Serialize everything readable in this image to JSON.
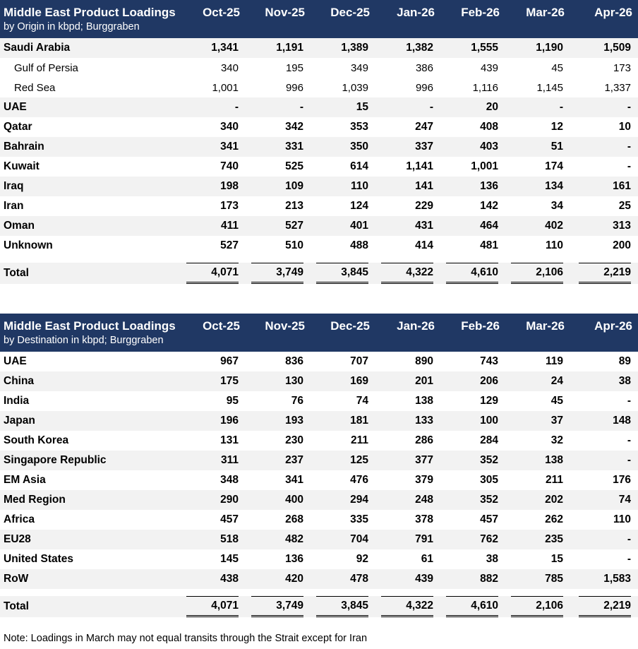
{
  "origin_table": {
    "title": "Middle East Product Loadings",
    "subtitle": "by Origin in kbpd; Burggraben",
    "months": [
      "Oct-25",
      "Nov-25",
      "Dec-25",
      "Jan-26",
      "Feb-26",
      "Mar-26",
      "Apr-26"
    ],
    "rows": [
      {
        "label": "Saudi Arabia",
        "bold": true,
        "shade": true,
        "values": [
          "1,341",
          "1,191",
          "1,389",
          "1,382",
          "1,555",
          "1,190",
          "1,509"
        ]
      },
      {
        "label": "Gulf of Persia",
        "bold": false,
        "child": true,
        "shade": false,
        "values": [
          "340",
          "195",
          "349",
          "386",
          "439",
          "45",
          "173"
        ]
      },
      {
        "label": "Red Sea",
        "bold": false,
        "child": true,
        "shade": false,
        "values": [
          "1,001",
          "996",
          "1,039",
          "996",
          "1,116",
          "1,145",
          "1,337"
        ]
      },
      {
        "label": "UAE",
        "bold": true,
        "shade": true,
        "values": [
          "-",
          "-",
          "15",
          "-",
          "20",
          "-",
          "-"
        ]
      },
      {
        "label": "Qatar",
        "bold": true,
        "shade": false,
        "values": [
          "340",
          "342",
          "353",
          "247",
          "408",
          "12",
          "10"
        ]
      },
      {
        "label": "Bahrain",
        "bold": true,
        "shade": true,
        "values": [
          "341",
          "331",
          "350",
          "337",
          "403",
          "51",
          "-"
        ]
      },
      {
        "label": "Kuwait",
        "bold": true,
        "shade": false,
        "values": [
          "740",
          "525",
          "614",
          "1,141",
          "1,001",
          "174",
          "-"
        ]
      },
      {
        "label": "Iraq",
        "bold": true,
        "shade": true,
        "values": [
          "198",
          "109",
          "110",
          "141",
          "136",
          "134",
          "161"
        ]
      },
      {
        "label": "Iran",
        "bold": true,
        "shade": false,
        "values": [
          "173",
          "213",
          "124",
          "229",
          "142",
          "34",
          "25"
        ]
      },
      {
        "label": "Oman",
        "bold": true,
        "shade": true,
        "values": [
          "411",
          "527",
          "401",
          "431",
          "464",
          "402",
          "313"
        ]
      },
      {
        "label": "Unknown",
        "bold": true,
        "shade": false,
        "values": [
          "527",
          "510",
          "488",
          "414",
          "481",
          "110",
          "200"
        ]
      }
    ],
    "total": {
      "label": "Total",
      "values": [
        "4,071",
        "3,749",
        "3,845",
        "4,322",
        "4,610",
        "2,106",
        "2,219"
      ]
    }
  },
  "destination_table": {
    "title": "Middle East Product Loadings",
    "subtitle": "by Destination in kbpd; Burggraben",
    "months": [
      "Oct-25",
      "Nov-25",
      "Dec-25",
      "Jan-26",
      "Feb-26",
      "Mar-26",
      "Apr-26"
    ],
    "rows": [
      {
        "label": "UAE",
        "bold": true,
        "shade": false,
        "values": [
          "967",
          "836",
          "707",
          "890",
          "743",
          "119",
          "89"
        ]
      },
      {
        "label": "China",
        "bold": true,
        "shade": true,
        "values": [
          "175",
          "130",
          "169",
          "201",
          "206",
          "24",
          "38"
        ]
      },
      {
        "label": "India",
        "bold": true,
        "shade": false,
        "values": [
          "95",
          "76",
          "74",
          "138",
          "129",
          "45",
          "-"
        ]
      },
      {
        "label": "Japan",
        "bold": true,
        "shade": true,
        "values": [
          "196",
          "193",
          "181",
          "133",
          "100",
          "37",
          "148"
        ]
      },
      {
        "label": "South Korea",
        "bold": true,
        "shade": false,
        "values": [
          "131",
          "230",
          "211",
          "286",
          "284",
          "32",
          "-"
        ]
      },
      {
        "label": "Singapore Republic",
        "bold": true,
        "shade": true,
        "values": [
          "311",
          "237",
          "125",
          "377",
          "352",
          "138",
          "-"
        ]
      },
      {
        "label": "EM Asia",
        "bold": true,
        "shade": false,
        "values": [
          "348",
          "341",
          "476",
          "379",
          "305",
          "211",
          "176"
        ]
      },
      {
        "label": "Med Region",
        "bold": true,
        "shade": true,
        "values": [
          "290",
          "400",
          "294",
          "248",
          "352",
          "202",
          "74"
        ]
      },
      {
        "label": "Africa",
        "bold": true,
        "shade": false,
        "values": [
          "457",
          "268",
          "335",
          "378",
          "457",
          "262",
          "110"
        ]
      },
      {
        "label": "EU28",
        "bold": true,
        "shade": true,
        "values": [
          "518",
          "482",
          "704",
          "791",
          "762",
          "235",
          "-"
        ]
      },
      {
        "label": "United States",
        "bold": true,
        "shade": false,
        "values": [
          "145",
          "136",
          "92",
          "61",
          "38",
          "15",
          "-"
        ]
      },
      {
        "label": "RoW",
        "bold": true,
        "shade": true,
        "values": [
          "438",
          "420",
          "478",
          "439",
          "882",
          "785",
          "1,583"
        ]
      }
    ],
    "total": {
      "label": "Total",
      "values": [
        "4,071",
        "3,749",
        "3,845",
        "4,322",
        "4,610",
        "2,106",
        "2,219"
      ]
    }
  },
  "note": "Note: Loadings in March may not equal transits through the Strait except for Iran",
  "colors": {
    "header_bg": "#203864",
    "row_shade": "#f2f2f2"
  }
}
